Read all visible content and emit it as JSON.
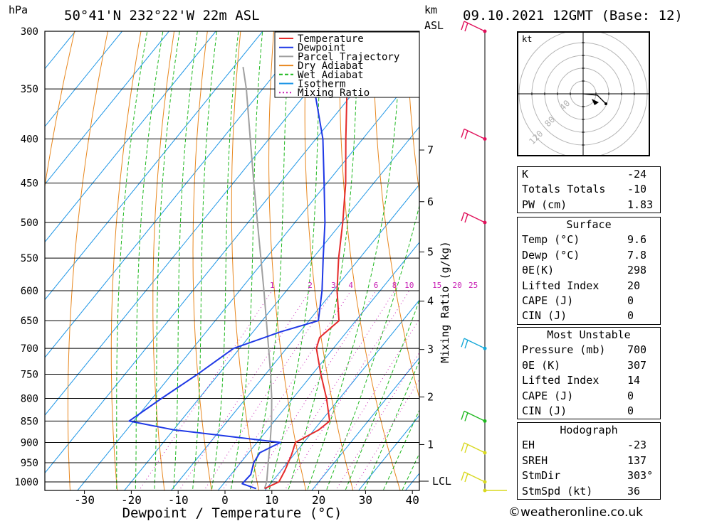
{
  "header": {
    "pressure_unit": "hPa",
    "location": "50°41'N  232°22'W  22m  ASL",
    "height_unit_top": "km",
    "height_unit_bottom": "ASL",
    "datetime": "09.10.2021  12GMT  (Base: 12)"
  },
  "axes": {
    "xlabel": "Dewpoint / Temperature (°C)",
    "y2label": "Mixing Ratio (g/kg)",
    "lcl_label": "LCL",
    "hodograph_unit": "kt"
  },
  "legend": [
    {
      "label": "Temperature",
      "color": "#e52b2b",
      "style": "solid"
    },
    {
      "label": "Dewpoint",
      "color": "#1e38e6",
      "style": "solid"
    },
    {
      "label": "Parcel Trajectory",
      "color": "#a0a0a0",
      "style": "solid"
    },
    {
      "label": "Dry Adiabat",
      "color": "#e8871e",
      "style": "solid"
    },
    {
      "label": "Wet Adiabat",
      "color": "#1fb81f",
      "style": "dashed"
    },
    {
      "label": "Isotherm",
      "color": "#1e96e6",
      "style": "solid"
    },
    {
      "label": "Mixing Ratio",
      "color": "#c81eb4",
      "style": "dotted"
    }
  ],
  "chart_data": {
    "type": "line",
    "title": "50°41'N  232°22'W  22m  ASL",
    "xlabel": "Dewpoint / Temperature (°C)",
    "ylabel": "hPa",
    "xlim": [
      -40,
      40
    ],
    "ylim": [
      1000,
      300
    ],
    "y_scale": "log",
    "x_ticks": [
      -30,
      -20,
      -10,
      0,
      10,
      20,
      30,
      40
    ],
    "pressure_ticks": [
      300,
      350,
      400,
      450,
      500,
      550,
      600,
      650,
      700,
      750,
      800,
      850,
      900,
      950,
      1000
    ],
    "height_ticks_km": [
      {
        "label": "1",
        "p": 905
      },
      {
        "label": "2",
        "p": 797
      },
      {
        "label": "3",
        "p": 702
      },
      {
        "label": "4",
        "p": 617
      },
      {
        "label": "5",
        "p": 541
      },
      {
        "label": "6",
        "p": 473
      },
      {
        "label": "7",
        "p": 412
      }
    ],
    "mixing_ratio_labels": [
      "1",
      "2",
      "3",
      "4",
      "6",
      "8",
      "10",
      "15",
      "20",
      "25"
    ],
    "mixing_ratio_values": [
      1,
      2,
      3,
      4,
      6,
      8,
      10,
      15,
      20,
      25
    ],
    "series": [
      {
        "name": "Temperature",
        "color": "#e52b2b",
        "points": [
          [
            1018,
            9.6
          ],
          [
            1000,
            11.5
          ],
          [
            970,
            10.8
          ],
          [
            930,
            9.5
          ],
          [
            900,
            8.2
          ],
          [
            870,
            11.0
          ],
          [
            850,
            11.8
          ],
          [
            800,
            7.2
          ],
          [
            750,
            1.8
          ],
          [
            700,
            -3.6
          ],
          [
            680,
            -4.8
          ],
          [
            650,
            -3.6
          ],
          [
            600,
            -9.2
          ],
          [
            550,
            -14.5
          ],
          [
            500,
            -19.8
          ],
          [
            450,
            -26.0
          ],
          [
            400,
            -33.6
          ],
          [
            350,
            -42.0
          ],
          [
            300,
            -51.0
          ]
        ]
      },
      {
        "name": "Dewpoint",
        "color": "#1e38e6",
        "points": [
          [
            1018,
            7.8
          ],
          [
            1005,
            4.0
          ],
          [
            980,
            4.2
          ],
          [
            950,
            2.8
          ],
          [
            925,
            2.4
          ],
          [
            900,
            5.0
          ],
          [
            870,
            -20.0
          ],
          [
            850,
            -31.0
          ],
          [
            800,
            -28.0
          ],
          [
            750,
            -24.5
          ],
          [
            700,
            -21.3
          ],
          [
            670,
            -14.2
          ],
          [
            650,
            -8.0
          ],
          [
            600,
            -12.4
          ],
          [
            550,
            -17.8
          ],
          [
            500,
            -23.6
          ],
          [
            450,
            -30.6
          ],
          [
            400,
            -38.5
          ],
          [
            350,
            -49.0
          ],
          [
            300,
            -60.0
          ]
        ]
      },
      {
        "name": "Parcel Trajectory",
        "color": "#a0a0a0",
        "points": [
          [
            1018,
            9.6
          ],
          [
            1000,
            8.9
          ],
          [
            950,
            5.9
          ],
          [
            900,
            2.8
          ],
          [
            850,
            -0.6
          ],
          [
            800,
            -4.5
          ],
          [
            750,
            -8.9
          ],
          [
            700,
            -13.8
          ],
          [
            650,
            -19.1
          ],
          [
            600,
            -24.8
          ],
          [
            550,
            -31.1
          ],
          [
            500,
            -38.0
          ],
          [
            450,
            -45.6
          ],
          [
            400,
            -54.0
          ],
          [
            350,
            -63.5
          ],
          [
            330,
            -68.0
          ]
        ]
      }
    ],
    "wind_barbs": [
      {
        "p": 300,
        "color": "#e0105a"
      },
      {
        "p": 400,
        "color": "#e0105a"
      },
      {
        "p": 500,
        "color": "#e0105a"
      },
      {
        "p": 700,
        "color": "#15a8d8"
      },
      {
        "p": 850,
        "color": "#1fb81f"
      },
      {
        "p": 925,
        "color": "#d8d81e"
      },
      {
        "p": 1000,
        "color": "#d8d81e"
      }
    ]
  },
  "hodograph": {
    "unit": "kt",
    "ring_labels": [
      "40",
      "80",
      "120"
    ]
  },
  "indices": [
    {
      "label": "K",
      "value": "-24"
    },
    {
      "label": "Totals Totals",
      "value": "-10"
    },
    {
      "label": "PW (cm)",
      "value": "1.83"
    }
  ],
  "surface": {
    "title": "Surface",
    "rows": [
      {
        "label": "Temp (°C)",
        "value": "9.6"
      },
      {
        "label": "Dewp (°C)",
        "value": "7.8"
      },
      {
        "label": "θE(K)",
        "value": "298"
      },
      {
        "label": "Lifted Index",
        "value": "20"
      },
      {
        "label": "CAPE (J)",
        "value": "0"
      },
      {
        "label": "CIN (J)",
        "value": "0"
      }
    ]
  },
  "most_unstable": {
    "title": "Most Unstable",
    "rows": [
      {
        "label": "Pressure (mb)",
        "value": "700"
      },
      {
        "label": "θE (K)",
        "value": "307"
      },
      {
        "label": "Lifted Index",
        "value": "14"
      },
      {
        "label": "CAPE (J)",
        "value": "0"
      },
      {
        "label": "CIN (J)",
        "value": "0"
      }
    ]
  },
  "hodograph_table": {
    "title": "Hodograph",
    "rows": [
      {
        "label": "EH",
        "value": "-23"
      },
      {
        "label": "SREH",
        "value": "137"
      },
      {
        "label": "StmDir",
        "value": "303°"
      },
      {
        "label": "StmSpd (kt)",
        "value": "36"
      }
    ]
  },
  "copyright": "©weatheronline.co.uk"
}
